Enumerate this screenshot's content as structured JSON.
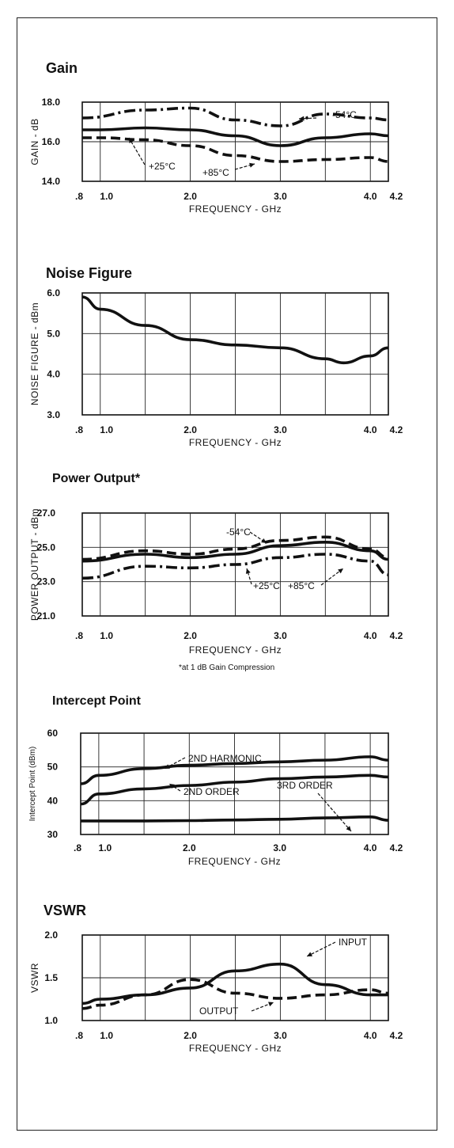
{
  "chart_data": [
    {
      "type": "line",
      "title": "Gain",
      "xlabel": "FREQUENCY - GHz",
      "ylabel": "GAIN - dB",
      "xlim": [
        0.8,
        4.2
      ],
      "ylim": [
        14.0,
        18.0
      ],
      "x_ticks": [
        ".8",
        "1.0",
        "2.0",
        "3.0",
        "4.0",
        "4.2"
      ],
      "y_ticks": [
        "18.0",
        "16.0",
        "14.0"
      ],
      "series": [
        {
          "name": "-54°C",
          "style": "dash-dot",
          "x": [
            0.8,
            1.5,
            2.0,
            2.5,
            3.0,
            3.5,
            4.0,
            4.2
          ],
          "y": [
            17.2,
            17.6,
            17.7,
            17.1,
            16.8,
            17.4,
            17.2,
            17.1
          ]
        },
        {
          "name": "+25°C",
          "style": "solid",
          "x": [
            0.8,
            1.0,
            1.5,
            2.0,
            2.5,
            3.0,
            3.5,
            4.0,
            4.2
          ],
          "y": [
            16.6,
            16.6,
            16.7,
            16.6,
            16.3,
            15.8,
            16.2,
            16.4,
            16.3
          ]
        },
        {
          "name": "+85°C",
          "style": "dashed",
          "x": [
            0.8,
            1.0,
            1.5,
            2.0,
            2.5,
            3.0,
            3.5,
            4.0,
            4.2
          ],
          "y": [
            16.2,
            16.2,
            16.1,
            15.8,
            15.3,
            15.0,
            15.1,
            15.2,
            15.0
          ]
        }
      ],
      "annotations": [
        "-54°C",
        "+25°C",
        "+85°C"
      ]
    },
    {
      "type": "line",
      "title": "Noise Figure",
      "xlabel": "FREQUENCY - GHz",
      "ylabel": "NOISE FIGURE - dBm",
      "xlim": [
        0.8,
        4.2
      ],
      "ylim": [
        3.0,
        6.0
      ],
      "x_ticks": [
        ".8",
        "1.0",
        "2.0",
        "3.0",
        "4.0",
        "4.2"
      ],
      "y_ticks": [
        "6.0",
        "5.0",
        "4.0",
        "3.0"
      ],
      "series": [
        {
          "style": "solid",
          "x": [
            0.8,
            1.0,
            1.5,
            2.0,
            2.5,
            3.0,
            3.5,
            3.7,
            4.0,
            4.2
          ],
          "y": [
            5.9,
            5.6,
            5.2,
            4.85,
            4.72,
            4.65,
            4.38,
            4.28,
            4.45,
            4.65
          ]
        }
      ]
    },
    {
      "type": "line",
      "title": "Power Output*",
      "xlabel": "FREQUENCY - GHz",
      "ylabel": "POWER OUTPUT - dBm",
      "xlim": [
        0.8,
        4.2
      ],
      "ylim": [
        21.0,
        27.0
      ],
      "x_ticks": [
        ".8",
        "1.0",
        "2.0",
        "3.0",
        "4.0",
        "4.2"
      ],
      "y_ticks": [
        "27.0",
        "25.0",
        "23.0",
        "21.0"
      ],
      "footnote": "*at 1 dB Gain Compression",
      "series": [
        {
          "name": "-54°C",
          "style": "dashed",
          "x": [
            0.8,
            1.5,
            2.0,
            2.5,
            3.0,
            3.5,
            4.0,
            4.2
          ],
          "y": [
            24.3,
            24.8,
            24.6,
            24.9,
            25.4,
            25.6,
            24.9,
            24.4
          ]
        },
        {
          "name": "+25°C",
          "style": "solid",
          "x": [
            0.8,
            1.5,
            2.0,
            2.5,
            3.0,
            3.5,
            4.0,
            4.2
          ],
          "y": [
            24.2,
            24.6,
            24.4,
            24.6,
            25.1,
            25.3,
            24.8,
            24.3
          ]
        },
        {
          "name": "+85°C",
          "style": "dash-dot",
          "x": [
            0.8,
            1.5,
            2.0,
            2.5,
            3.0,
            3.5,
            4.0,
            4.2
          ],
          "y": [
            23.2,
            23.9,
            23.8,
            24.0,
            24.4,
            24.6,
            24.2,
            23.4
          ]
        }
      ],
      "annotations": [
        "-54°C",
        "+25°C",
        "+85°C"
      ]
    },
    {
      "type": "line",
      "title": "Intercept Point",
      "xlabel": "FREQUENCY - GHz",
      "ylabel": "Intercept Point (dBm)",
      "xlim": [
        0.8,
        4.2
      ],
      "ylim": [
        30,
        60
      ],
      "x_ticks": [
        ".8",
        "1.0",
        "2.0",
        "3.0",
        "4.0",
        "4.2"
      ],
      "y_ticks": [
        "60",
        "50",
        "40",
        "30"
      ],
      "series": [
        {
          "name": "2ND HARMONIC",
          "style": "solid",
          "x": [
            0.8,
            1.0,
            1.5,
            2.0,
            2.5,
            3.0,
            3.5,
            4.0,
            4.2
          ],
          "y": [
            45,
            47.5,
            49.5,
            50.5,
            51,
            51.5,
            52,
            53,
            52
          ]
        },
        {
          "name": "2ND ORDER",
          "style": "solid",
          "x": [
            0.8,
            1.0,
            1.5,
            2.0,
            2.5,
            3.0,
            3.5,
            4.0,
            4.2
          ],
          "y": [
            39,
            42,
            43.5,
            44.5,
            45.5,
            46.5,
            47,
            47.5,
            47
          ]
        },
        {
          "name": "3RD ORDER",
          "style": "solid",
          "x": [
            0.8,
            1.0,
            1.5,
            2.0,
            2.5,
            3.0,
            3.5,
            4.0,
            4.2
          ],
          "y": [
            34,
            34,
            34,
            34.1,
            34.3,
            34.5,
            34.9,
            35.2,
            34.2
          ]
        }
      ],
      "annotations": [
        "2ND HARMONIC",
        "2ND ORDER",
        "3RD ORDER"
      ]
    },
    {
      "type": "line",
      "title": "VSWR",
      "xlabel": "FREQUENCY - GHz",
      "ylabel": "VSWR",
      "xlim": [
        0.8,
        4.2
      ],
      "ylim": [
        1.0,
        2.0
      ],
      "x_ticks": [
        ".8",
        "1.0",
        "2.0",
        "3.0",
        "4.0",
        "4.2"
      ],
      "y_ticks": [
        "2.0",
        "1.5",
        "1.0"
      ],
      "series": [
        {
          "name": "INPUT",
          "style": "solid",
          "x": [
            0.8,
            1.0,
            1.5,
            2.0,
            2.5,
            3.0,
            3.5,
            4.0,
            4.2
          ],
          "y": [
            1.2,
            1.25,
            1.3,
            1.38,
            1.58,
            1.66,
            1.42,
            1.3,
            1.3
          ]
        },
        {
          "name": "OUTPUT",
          "style": "dashed",
          "x": [
            0.8,
            1.0,
            1.5,
            2.0,
            2.5,
            3.0,
            3.5,
            4.0,
            4.2
          ],
          "y": [
            1.14,
            1.18,
            1.3,
            1.48,
            1.32,
            1.26,
            1.3,
            1.36,
            1.32
          ]
        }
      ],
      "annotations": [
        "INPUT",
        "OUTPUT"
      ]
    }
  ]
}
